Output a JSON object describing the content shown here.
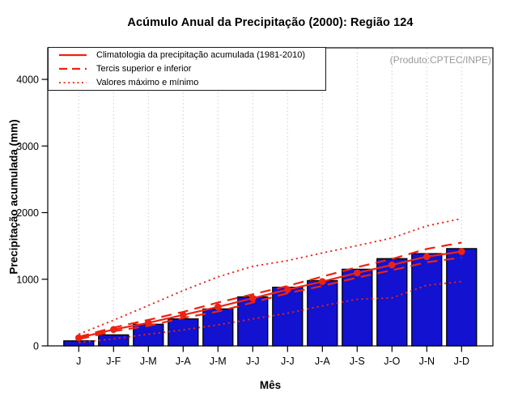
{
  "chart_data": {
    "type": "bar",
    "title": "Acúmulo Anual da Precipitação (2000): Região 124",
    "xlabel": "Mês",
    "ylabel": "Precipitação acumulada (mm)",
    "annotation": "(Produto:CPTEC/INPE)",
    "categories": [
      "J",
      "J-F",
      "J-M",
      "J-A",
      "J-M",
      "J-J",
      "J-J",
      "J-A",
      "J-S",
      "J-O",
      "J-N",
      "J-D"
    ],
    "y_ticks": [
      0,
      1000,
      2000,
      3000,
      4000
    ],
    "ylim": [
      0,
      4450
    ],
    "grid": "vertical-dotted",
    "legend_position": "top-left",
    "bar_values": [
      75,
      165,
      325,
      405,
      555,
      735,
      880,
      980,
      1150,
      1310,
      1385,
      1460
    ],
    "series": [
      {
        "name": "Climatologia da precipitação acumulada (1981-2010)",
        "line_style": "solid",
        "markers": true,
        "values": [
          120,
          245,
          345,
          465,
          585,
          715,
          845,
          965,
          1095,
          1215,
          1340,
          1415
        ]
      },
      {
        "name": "Tercil superior",
        "line_style": "dashed",
        "markers": false,
        "values": [
          135,
          275,
          390,
          510,
          650,
          775,
          900,
          1040,
          1180,
          1305,
          1455,
          1550
        ]
      },
      {
        "name": "Tercil inferior",
        "line_style": "dashed",
        "markers": false,
        "values": [
          100,
          220,
          300,
          420,
          515,
          650,
          790,
          900,
          1025,
          1135,
          1255,
          1325
        ]
      },
      {
        "name": "Valor máximo",
        "line_style": "dotted",
        "markers": false,
        "values": [
          175,
          385,
          605,
          830,
          1035,
          1195,
          1280,
          1395,
          1505,
          1620,
          1800,
          1910
        ]
      },
      {
        "name": "Valor mínimo",
        "line_style": "dotted",
        "markers": false,
        "values": [
          50,
          105,
          175,
          240,
          315,
          405,
          490,
          600,
          700,
          720,
          910,
          965
        ]
      }
    ],
    "legend": [
      {
        "label": "Climatologia da precipitação acumulada (1981-2010)",
        "style": "solid"
      },
      {
        "label": "Tercis superior e inferior",
        "style": "dashed"
      },
      {
        "label": "Valores máximo e mínimo",
        "style": "dotted"
      }
    ],
    "colors": {
      "bar": "#1212D0",
      "line": "#EE2211",
      "grid": "#CFCFCF",
      "watermark": "#999999"
    }
  }
}
